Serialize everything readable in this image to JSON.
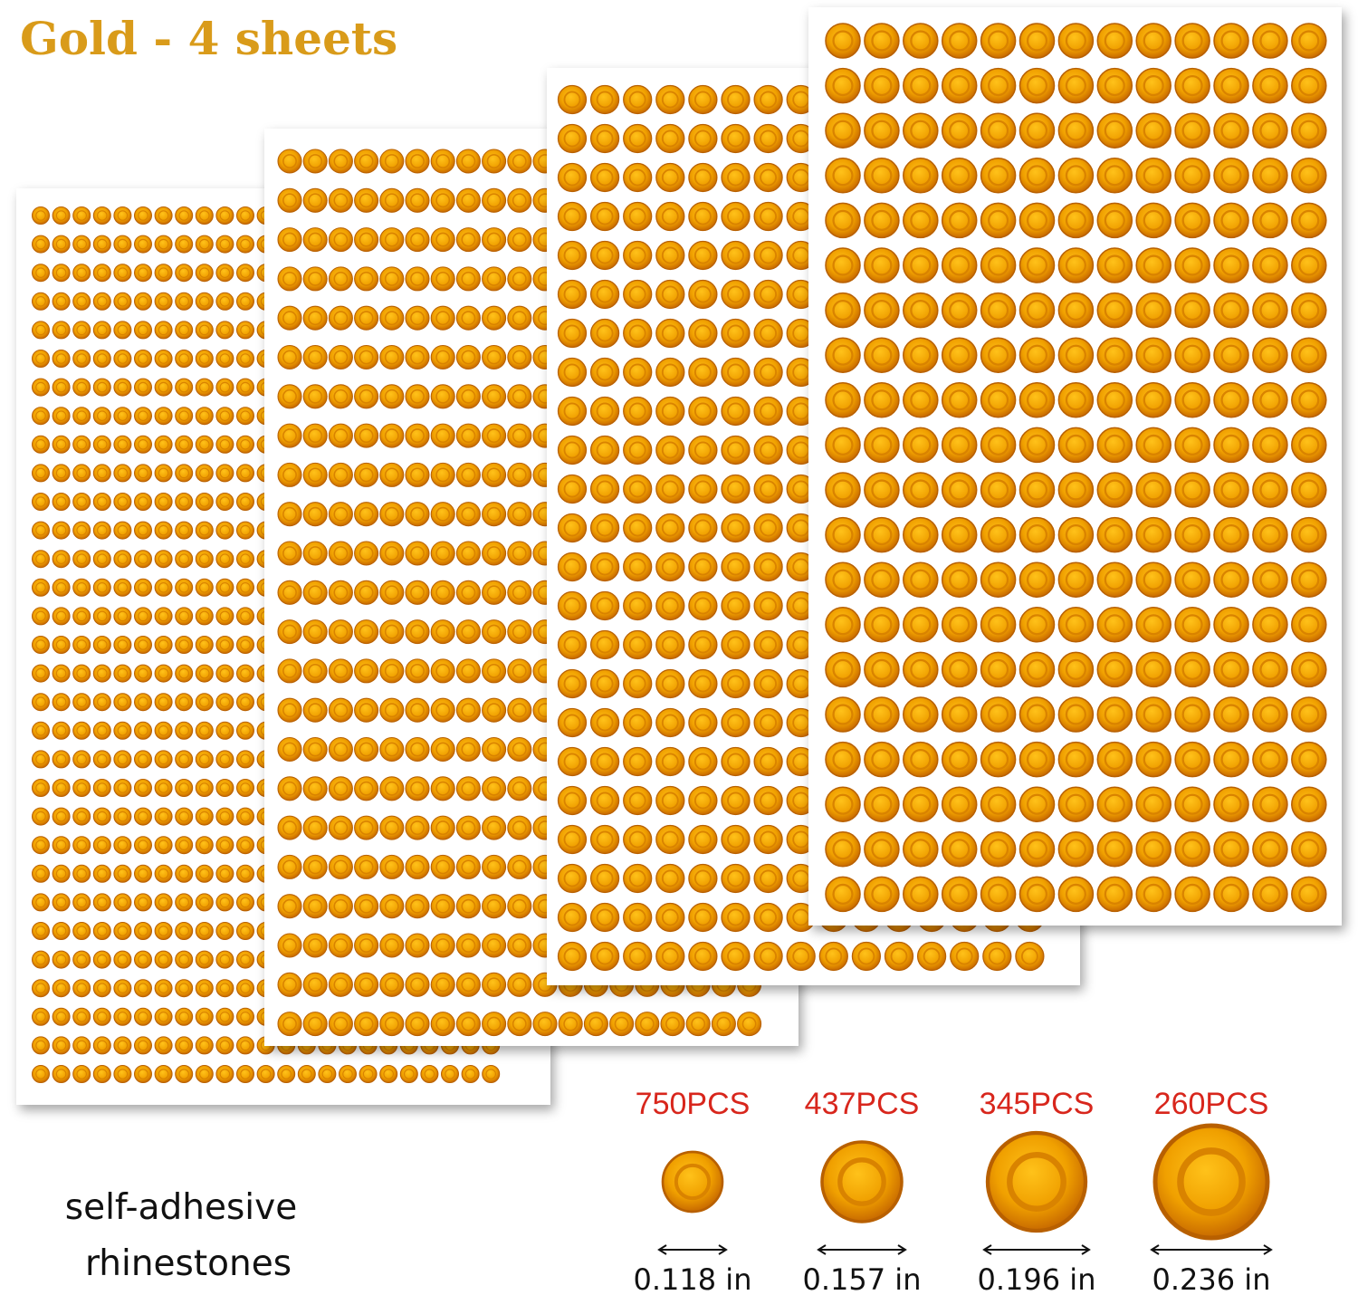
{
  "header": {
    "title": "Gold - 4 sheets"
  },
  "sizes": [
    {
      "count": "750PCS",
      "diameter": "0.118 in"
    },
    {
      "count": "437PCS",
      "diameter": "0.157 in"
    },
    {
      "count": "345PCS",
      "diameter": "0.196 in"
    },
    {
      "count": "260PCS",
      "diameter": "0.236 in"
    }
  ],
  "caption": {
    "line1": "self-adhesive",
    "line2": "rhinestones"
  }
}
